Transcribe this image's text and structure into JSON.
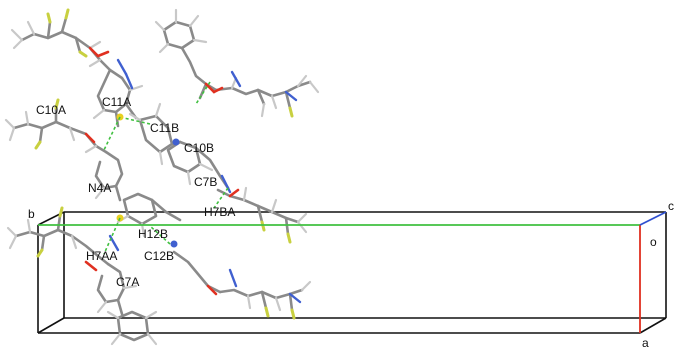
{
  "figure": {
    "colors": {
      "background": "#ffffff",
      "bond": "#8a8a8a",
      "hydrogen": "#c8c8c8",
      "oxygen": "#e03020",
      "nitrogen": "#4060d0",
      "fluorine": "#c8d040",
      "sulfur": "#e8d020",
      "hbond": "#40c040",
      "cell_edge": "#111111",
      "axis_a": "#e03020",
      "axis_b": "#40c040",
      "axis_c": "#3050d0"
    },
    "atom_labels": {
      "c10a": "C10A",
      "c11a": "C11A",
      "c11b": "C11B",
      "c10b": "C10B",
      "n4a": "N4A",
      "c7b": "C7B",
      "h7ba": "H7BA",
      "h12b": "H12B",
      "h7aa": "H7AA",
      "c12b": "C12B",
      "c7a": "C7A"
    },
    "axis_labels": {
      "a": "a",
      "b": "b",
      "c": "c",
      "origin": "o"
    }
  }
}
